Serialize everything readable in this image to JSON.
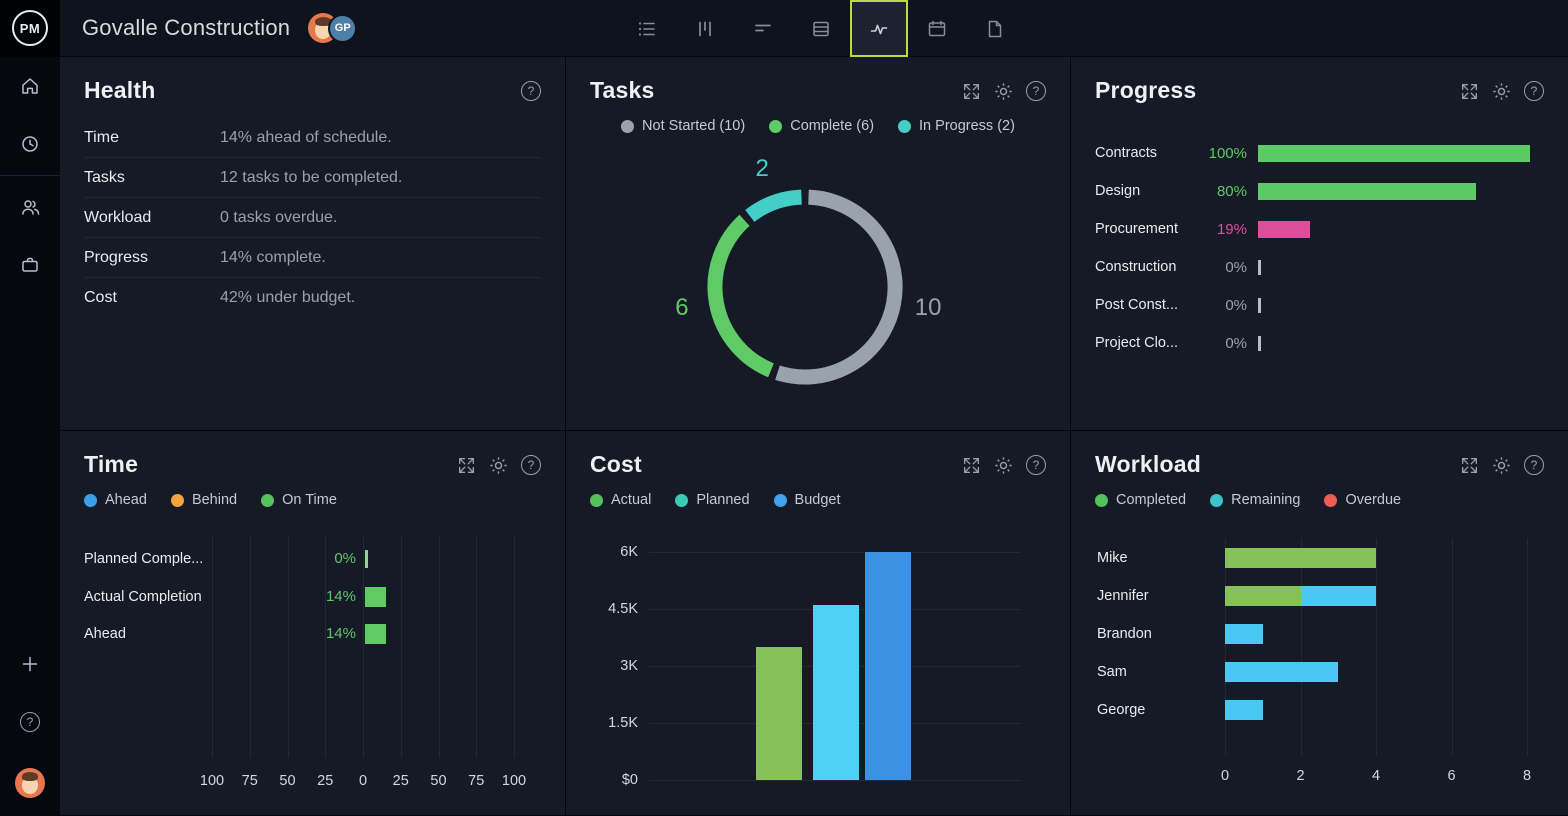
{
  "topbar": {
    "logo_text": "PM",
    "project_title": "Govalle Construction",
    "avatar_initials": "GP",
    "toolbar_icons": [
      "list-view",
      "board-view",
      "gantt-view",
      "sheet-view",
      "dashboard-view",
      "calendar-view",
      "files-view"
    ],
    "active_tool": "dashboard-view",
    "active_highlight_color": "#bcd945"
  },
  "sidebar": {
    "items": [
      "home",
      "recent",
      "team",
      "portfolio"
    ],
    "footer_items": [
      "add",
      "help",
      "profile"
    ]
  },
  "panels": {
    "health": {
      "title": "Health",
      "rows": [
        {
          "label": "Time",
          "value": "14% ahead of schedule."
        },
        {
          "label": "Tasks",
          "value": "12 tasks to be completed."
        },
        {
          "label": "Workload",
          "value": "0 tasks overdue."
        },
        {
          "label": "Progress",
          "value": "14% complete."
        },
        {
          "label": "Cost",
          "value": "42% under budget."
        }
      ]
    },
    "tasks": {
      "title": "Tasks"
    },
    "progress": {
      "title": "Progress"
    },
    "time": {
      "title": "Time"
    },
    "cost": {
      "title": "Cost"
    },
    "workload": {
      "title": "Workload"
    }
  },
  "chart_data": [
    {
      "id": "tasks-donut",
      "type": "pie",
      "title": "Tasks",
      "style": "donut",
      "total": 18,
      "legend_position": "top",
      "segments": [
        {
          "name": "Not Started",
          "value": 10,
          "color": "#9aa2ac"
        },
        {
          "name": "Complete",
          "value": 6,
          "color": "#5fcb66"
        },
        {
          "name": "In Progress",
          "value": 2,
          "color": "#43cfc6"
        }
      ],
      "legend": [
        {
          "label": "Not Started (10)",
          "color": "#9aa2ac"
        },
        {
          "label": "Complete (6)",
          "color": "#5fcb66"
        },
        {
          "label": "In Progress (2)",
          "color": "#43cfc6"
        }
      ]
    },
    {
      "id": "progress-bars",
      "type": "bar",
      "orientation": "horizontal",
      "title": "Progress",
      "unit": "%",
      "xlim": [
        0,
        100
      ],
      "grid": false,
      "categories": [
        "Contracts",
        "Design",
        "Procurement",
        "Construction",
        "Post Const...",
        "Project Clo..."
      ],
      "values": [
        100,
        80,
        19,
        0,
        0,
        0
      ],
      "value_labels": [
        "100%",
        "80%",
        "19%",
        "0%",
        "0%",
        "0%"
      ],
      "colors": [
        "#5dcb63",
        "#5dcb63",
        "#dd4f9d",
        "#9aa1ad",
        "#9aa1ad",
        "#9aa1ad"
      ]
    },
    {
      "id": "time-bars",
      "type": "bar",
      "orientation": "horizontal",
      "title": "Time",
      "mirrored_axis": true,
      "axis_ticks": [
        "100",
        "75",
        "50",
        "25",
        "0",
        "25",
        "50",
        "75",
        "100"
      ],
      "xlim": [
        -100,
        100
      ],
      "grid": true,
      "categories": [
        "Planned Comple...",
        "Actual Completion",
        "Ahead"
      ],
      "values": [
        0,
        14,
        14
      ],
      "value_labels": [
        "0%",
        "14%",
        "14%"
      ],
      "bar_color": "#5ecb63",
      "value_color": "#5fc769",
      "legend": [
        {
          "label": "Ahead",
          "color": "#3aa0e8"
        },
        {
          "label": "Behind",
          "color": "#f2a33c"
        },
        {
          "label": "On Time",
          "color": "#55c35c"
        }
      ]
    },
    {
      "id": "cost-bars",
      "type": "bar",
      "orientation": "vertical",
      "title": "Cost",
      "ylim": [
        0,
        6000
      ],
      "grid": true,
      "y_ticks": [
        "6K",
        "4.5K",
        "3K",
        "1.5K",
        "$0"
      ],
      "categories": [
        "Actual",
        "Planned",
        "Budget"
      ],
      "values": [
        3500,
        4600,
        6000
      ],
      "colors": [
        "#86c059",
        "#4ed0f7",
        "#3c91e2"
      ],
      "legend": [
        {
          "label": "Actual",
          "color": "#55c15b"
        },
        {
          "label": "Planned",
          "color": "#3cc8b4"
        },
        {
          "label": "Budget",
          "color": "#3fa2ef"
        }
      ]
    },
    {
      "id": "workload-bars",
      "type": "bar",
      "orientation": "horizontal",
      "stacked": true,
      "title": "Workload",
      "xlim": [
        0,
        8
      ],
      "grid": true,
      "x_ticks": [
        "0",
        "2",
        "4",
        "6",
        "8"
      ],
      "categories": [
        "Mike",
        "Jennifer",
        "Brandon",
        "Sam",
        "George"
      ],
      "series": [
        {
          "name": "Completed",
          "color": "#86c059",
          "values": [
            4,
            2,
            0,
            0,
            0
          ]
        },
        {
          "name": "Remaining",
          "color": "#4ac7f5",
          "values": [
            0,
            2,
            1,
            3,
            1
          ]
        },
        {
          "name": "Overdue",
          "color": "#ed5b52",
          "values": [
            0,
            0,
            0,
            0,
            0
          ]
        }
      ],
      "legend": [
        {
          "label": "Completed",
          "color": "#55c15b"
        },
        {
          "label": "Remaining",
          "color": "#3cc3c9"
        },
        {
          "label": "Overdue",
          "color": "#ed5b52"
        }
      ]
    }
  ]
}
